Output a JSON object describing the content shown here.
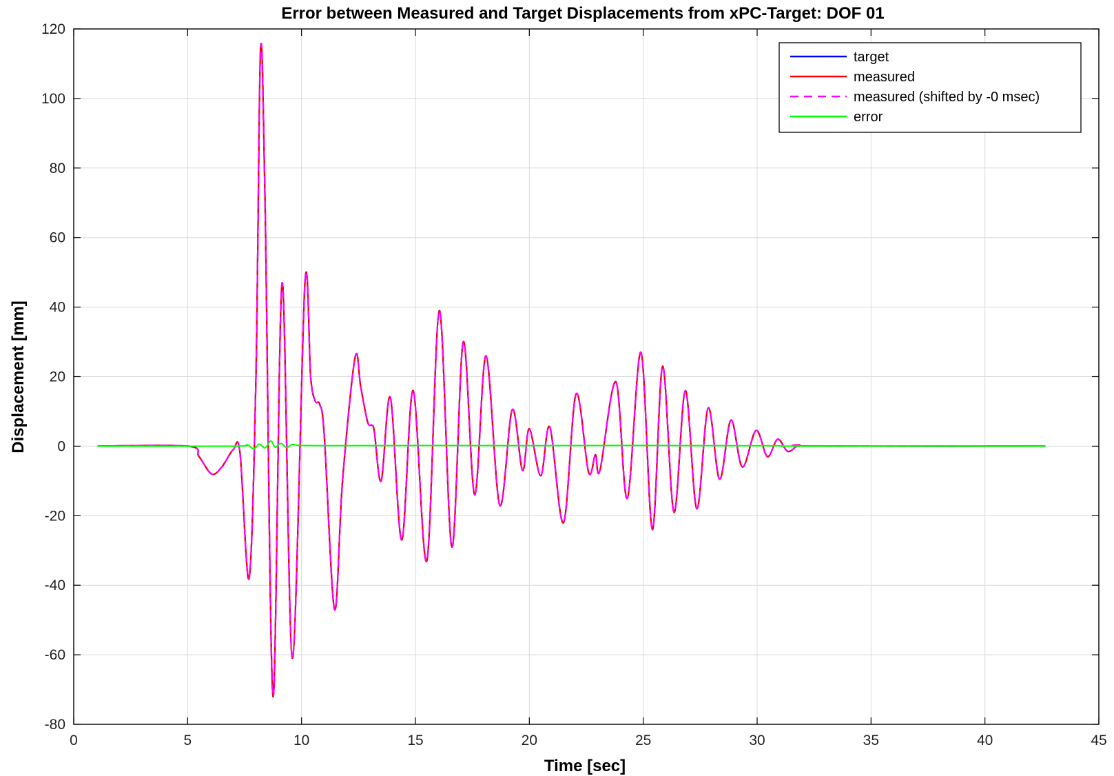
{
  "chart_data": {
    "type": "line",
    "title": "Error between Measured and Target Displacements from xPC-Target: DOF 01",
    "xlabel": "Time [sec]",
    "ylabel": "Displacement [mm]",
    "xlim": [
      0,
      45
    ],
    "ylim": [
      -80,
      120
    ],
    "xticks": [
      "0",
      "5",
      "10",
      "15",
      "20",
      "25",
      "30",
      "35",
      "40",
      "45"
    ],
    "yticks": [
      "120",
      "100",
      "80",
      "60",
      "40",
      "20",
      "0",
      "-20",
      "-40",
      "-60",
      "-80"
    ],
    "grid": true,
    "legend_position": "top-right",
    "series": [
      {
        "name": "target",
        "color": "#0000ff",
        "line_style": "solid",
        "x": [
          1.05,
          5.0,
          5.5,
          6.05,
          6.5,
          7.0,
          7.3,
          7.7,
          8.0,
          8.2,
          8.4,
          8.75,
          9.15,
          9.6,
          10.15,
          10.4,
          10.6,
          10.8,
          11.0,
          11.45,
          11.8,
          12.35,
          12.6,
          12.9,
          13.1,
          13.2,
          13.5,
          13.9,
          14.4,
          14.9,
          15.5,
          16.05,
          16.6,
          17.1,
          17.6,
          18.1,
          18.7,
          19.25,
          19.7,
          20.0,
          20.5,
          20.9,
          21.5,
          22.05,
          22.6,
          22.9,
          23.1,
          23.8,
          24.3,
          24.9,
          25.4,
          25.85,
          26.35,
          26.85,
          27.35,
          27.85,
          28.35,
          28.85,
          29.35,
          29.95,
          30.45,
          30.9,
          31.35,
          31.85,
          32.5,
          42.65
        ],
        "y": [
          0,
          0,
          -3,
          -8,
          -6,
          -1,
          -2,
          -38,
          20,
          114,
          70,
          -72,
          47,
          -61,
          47,
          20,
          13,
          12,
          3,
          -47,
          -10,
          25.5,
          17,
          7,
          6,
          4,
          -10,
          14,
          -27,
          16,
          -33,
          39,
          -29,
          30,
          -14,
          26,
          -17,
          10.5,
          -7,
          5,
          -8.5,
          5.5,
          -22,
          15,
          -7.5,
          -2.5,
          -7,
          18.5,
          -15,
          27,
          -24,
          23,
          -19,
          16,
          -18,
          11,
          -9.5,
          7.5,
          -6,
          4.5,
          -3,
          2,
          -1.5,
          0.3,
          0,
          0
        ]
      },
      {
        "name": "measured",
        "color": "#ff0000",
        "line_style": "solid",
        "x": [
          1.05,
          5.0,
          5.5,
          6.05,
          6.5,
          7.0,
          7.3,
          7.7,
          8.0,
          8.2,
          8.4,
          8.75,
          9.15,
          9.6,
          10.15,
          10.4,
          10.6,
          10.8,
          11.0,
          11.45,
          11.8,
          12.35,
          12.6,
          12.9,
          13.1,
          13.2,
          13.5,
          13.9,
          14.4,
          14.9,
          15.5,
          16.05,
          16.6,
          17.1,
          17.6,
          18.1,
          18.7,
          19.25,
          19.7,
          20.0,
          20.5,
          20.9,
          21.5,
          22.05,
          22.6,
          22.9,
          23.1,
          23.8,
          24.3,
          24.9,
          25.4,
          25.85,
          26.35,
          26.85,
          27.35,
          27.85,
          28.35,
          28.85,
          29.35,
          29.95,
          30.45,
          30.9,
          31.35,
          31.85,
          32.5,
          42.65
        ],
        "y": [
          0,
          0,
          -3,
          -8,
          -6,
          -1,
          -2,
          -38,
          20,
          114,
          70,
          -72,
          47,
          -61,
          47,
          20,
          13,
          12,
          3,
          -47,
          -10,
          25.5,
          17,
          7,
          6,
          4,
          -10,
          14,
          -27,
          16,
          -33,
          39,
          -29,
          30,
          -14,
          26,
          -17,
          10.5,
          -7,
          5,
          -8.5,
          5.5,
          -22,
          15,
          -7.5,
          -2.5,
          -7,
          18.5,
          -15,
          27,
          -24,
          23,
          -19,
          16,
          -18,
          11,
          -9.5,
          7.5,
          -6,
          4.5,
          -3,
          2,
          -1.5,
          0.3,
          0,
          0
        ]
      },
      {
        "name": "measured (shifted by -0 msec)",
        "color": "#ff00ff",
        "line_style": "dashed",
        "x": [
          1.05,
          5.0,
          5.5,
          6.05,
          6.5,
          7.0,
          7.3,
          7.7,
          8.0,
          8.2,
          8.4,
          8.75,
          9.15,
          9.6,
          10.15,
          10.4,
          10.6,
          10.8,
          11.0,
          11.45,
          11.8,
          12.35,
          12.6,
          12.9,
          13.1,
          13.2,
          13.5,
          13.9,
          14.4,
          14.9,
          15.5,
          16.05,
          16.6,
          17.1,
          17.6,
          18.1,
          18.7,
          19.25,
          19.7,
          20.0,
          20.5,
          20.9,
          21.5,
          22.05,
          22.6,
          22.9,
          23.1,
          23.8,
          24.3,
          24.9,
          25.4,
          25.85,
          26.35,
          26.85,
          27.35,
          27.85,
          28.35,
          28.85,
          29.35,
          29.95,
          30.45,
          30.9,
          31.35,
          31.85,
          32.5,
          42.65
        ],
        "y": [
          0,
          0,
          -3,
          -8,
          -6,
          -1,
          -2,
          -38,
          20,
          114,
          70,
          -72,
          47,
          -61,
          47,
          20,
          13,
          12,
          3,
          -47,
          -10,
          25.5,
          17,
          7,
          6,
          4,
          -10,
          14,
          -27,
          16,
          -33,
          39,
          -29,
          30,
          -14,
          26,
          -17,
          10.5,
          -7,
          5,
          -8.5,
          5.5,
          -22,
          15,
          -7.5,
          -2.5,
          -7,
          18.5,
          -15,
          27,
          -24,
          23,
          -19,
          16,
          -18,
          11,
          -9.5,
          7.5,
          -6,
          4.5,
          -3,
          2,
          -1.5,
          0.3,
          0,
          0
        ]
      },
      {
        "name": "error",
        "color": "#00ff00",
        "line_style": "solid",
        "x": [
          1.05,
          7.0,
          7.6,
          7.9,
          8.15,
          8.4,
          8.65,
          8.85,
          9.1,
          9.35,
          9.6,
          10.0,
          12.0,
          16.0,
          20.0,
          24.0,
          28.0,
          31.0,
          32.0,
          42.65
        ],
        "y": [
          0,
          0,
          0.4,
          -0.8,
          0.6,
          -0.5,
          1.5,
          -0.3,
          0.8,
          -0.4,
          0.5,
          0.2,
          0.15,
          0.2,
          0.15,
          0.2,
          0.15,
          0.1,
          0,
          0
        ]
      }
    ]
  }
}
